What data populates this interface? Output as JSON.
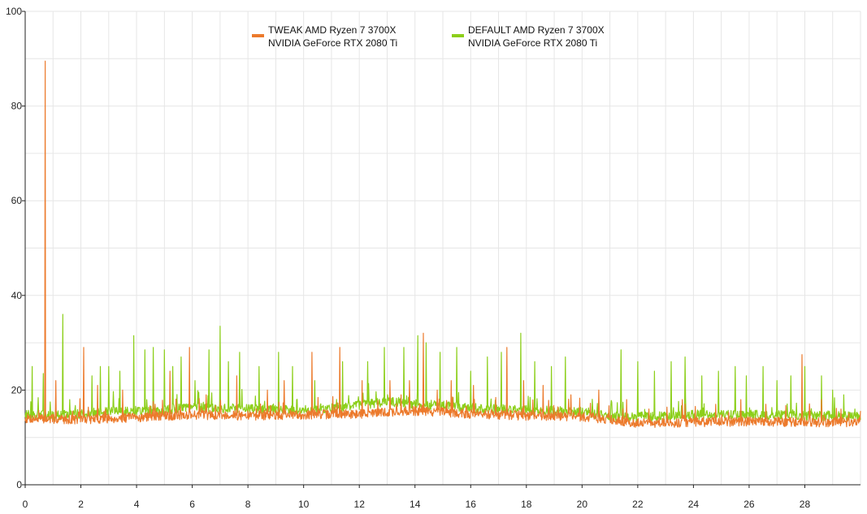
{
  "chart_data": {
    "type": "line",
    "title": "",
    "xlabel": "",
    "ylabel": "",
    "xlim": [
      0,
      30
    ],
    "ylim": [
      0,
      100
    ],
    "x_ticks": [
      "0",
      "2",
      "4",
      "6",
      "8",
      "10",
      "12",
      "14",
      "16",
      "18",
      "20",
      "22",
      "24",
      "26",
      "28"
    ],
    "y_ticks": [
      "0",
      "20",
      "40",
      "60",
      "80",
      "100"
    ],
    "grid": true,
    "legend": "top-center",
    "series": [
      {
        "name_line1": "TWEAK AMD Ryzen 7 3700X",
        "name_line2": "NVIDIA GeForce RTX 2080 Ti",
        "color": "#ec7a2c",
        "baseline": [
          [
            0,
            14.0
          ],
          [
            2,
            13.8
          ],
          [
            4,
            14.2
          ],
          [
            6,
            14.8
          ],
          [
            8,
            14.6
          ],
          [
            10,
            14.8
          ],
          [
            12,
            15.0
          ],
          [
            14,
            15.6
          ],
          [
            16,
            15.0
          ],
          [
            18,
            14.6
          ],
          [
            20,
            14.4
          ],
          [
            21,
            13.8
          ],
          [
            22,
            13.0
          ],
          [
            24,
            13.2
          ],
          [
            26,
            13.4
          ],
          [
            28,
            13.2
          ],
          [
            30,
            13.2
          ]
        ],
        "spikes": [
          [
            0.72,
            89.5
          ],
          [
            1.1,
            22
          ],
          [
            2.1,
            29
          ],
          [
            2.6,
            21
          ],
          [
            3.5,
            20
          ],
          [
            5.2,
            24
          ],
          [
            5.9,
            29
          ],
          [
            6.5,
            19
          ],
          [
            7.6,
            23
          ],
          [
            8.7,
            20
          ],
          [
            9.3,
            22
          ],
          [
            10.3,
            28
          ],
          [
            11.3,
            29
          ],
          [
            12.1,
            22
          ],
          [
            13.1,
            22
          ],
          [
            13.8,
            22
          ],
          [
            14.3,
            32
          ],
          [
            14.8,
            20
          ],
          [
            15.3,
            22
          ],
          [
            16.1,
            21
          ],
          [
            17.3,
            29
          ],
          [
            17.9,
            22
          ],
          [
            18.6,
            21
          ],
          [
            19.6,
            19
          ],
          [
            20.6,
            20
          ],
          [
            21.6,
            18
          ],
          [
            22.4,
            16
          ],
          [
            23.6,
            18
          ],
          [
            24.8,
            17
          ],
          [
            25.7,
            18
          ],
          [
            26.6,
            17
          ],
          [
            27.9,
            27.5
          ],
          [
            28.6,
            18
          ],
          [
            29.3,
            16
          ]
        ]
      },
      {
        "name_line1": "DEFAULT AMD Ryzen 7 3700X",
        "name_line2": "NVIDIA GeForce RTX 2080 Ti",
        "color": "#8ccf1a",
        "baseline": [
          [
            0,
            14.8
          ],
          [
            1,
            14.6
          ],
          [
            2,
            15.0
          ],
          [
            3,
            15.4
          ],
          [
            4,
            15.6
          ],
          [
            5,
            15.8
          ],
          [
            6,
            16.4
          ],
          [
            7,
            16.2
          ],
          [
            8,
            16.0
          ],
          [
            9,
            15.8
          ],
          [
            10,
            16.0
          ],
          [
            11,
            16.2
          ],
          [
            12,
            16.8
          ],
          [
            13,
            17.6
          ],
          [
            14,
            17.0
          ],
          [
            15,
            16.8
          ],
          [
            16,
            16.2
          ],
          [
            17,
            16.0
          ],
          [
            18,
            15.8
          ],
          [
            19,
            15.6
          ],
          [
            20,
            15.4
          ],
          [
            21,
            14.4
          ],
          [
            22,
            14.4
          ],
          [
            24,
            14.8
          ],
          [
            26,
            14.8
          ],
          [
            28,
            14.6
          ],
          [
            30,
            14.4
          ]
        ],
        "spikes": [
          [
            0.25,
            25
          ],
          [
            0.65,
            23.5
          ],
          [
            1.35,
            36
          ],
          [
            1.6,
            18
          ],
          [
            2.4,
            23
          ],
          [
            2.7,
            25
          ],
          [
            3.0,
            25
          ],
          [
            3.4,
            24
          ],
          [
            3.9,
            31.5
          ],
          [
            4.3,
            28.5
          ],
          [
            4.6,
            29
          ],
          [
            5.0,
            28.5
          ],
          [
            5.3,
            25
          ],
          [
            5.6,
            27
          ],
          [
            6.1,
            22
          ],
          [
            6.6,
            28.5
          ],
          [
            7.0,
            33.5
          ],
          [
            7.3,
            26
          ],
          [
            7.7,
            28
          ],
          [
            8.4,
            25
          ],
          [
            9.1,
            28
          ],
          [
            9.6,
            25
          ],
          [
            10.4,
            22
          ],
          [
            11.4,
            26
          ],
          [
            12.3,
            26
          ],
          [
            12.9,
            29
          ],
          [
            13.6,
            29
          ],
          [
            14.1,
            31.5
          ],
          [
            14.4,
            30
          ],
          [
            14.9,
            28
          ],
          [
            15.5,
            29
          ],
          [
            16.0,
            24
          ],
          [
            16.6,
            27
          ],
          [
            17.1,
            28
          ],
          [
            17.8,
            32
          ],
          [
            18.3,
            26
          ],
          [
            18.9,
            25
          ],
          [
            19.4,
            27
          ],
          [
            20.6,
            18
          ],
          [
            21.4,
            28.5
          ],
          [
            22.0,
            26
          ],
          [
            22.6,
            24
          ],
          [
            23.2,
            26
          ],
          [
            23.7,
            27
          ],
          [
            24.3,
            23
          ],
          [
            24.9,
            24
          ],
          [
            25.5,
            25
          ],
          [
            25.9,
            23
          ],
          [
            26.5,
            25
          ],
          [
            27.0,
            22
          ],
          [
            27.5,
            23
          ],
          [
            28.0,
            25
          ],
          [
            28.6,
            23
          ],
          [
            29.0,
            20
          ],
          [
            29.4,
            19
          ],
          [
            29.8,
            16
          ]
        ]
      }
    ]
  }
}
